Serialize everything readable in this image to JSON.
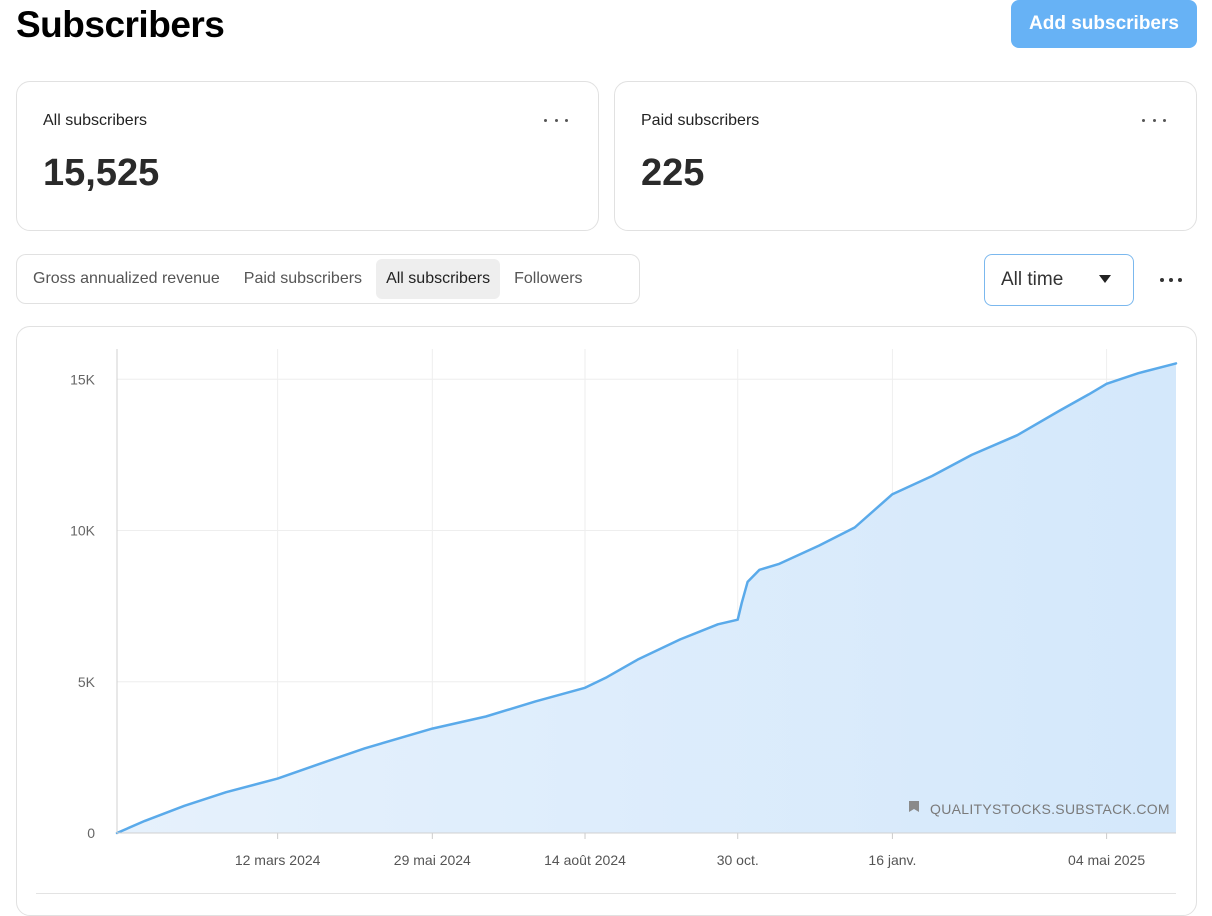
{
  "header": {
    "title": "Subscribers",
    "add_button_label": "Add subscribers"
  },
  "stats": {
    "all": {
      "label": "All subscribers",
      "value": "15,525"
    },
    "paid": {
      "label": "Paid subscribers",
      "value": "225"
    }
  },
  "tabs": [
    {
      "label": "Gross annualized revenue",
      "active": false
    },
    {
      "label": "Paid subscribers",
      "active": false
    },
    {
      "label": "All subscribers",
      "active": true
    },
    {
      "label": "Followers",
      "active": false
    }
  ],
  "range": {
    "selected": "All time"
  },
  "icons": {
    "card_more": "more-horizontal-icon",
    "caret": "caret-down-icon",
    "chart_more": "more-horizontal-icon",
    "watermark": "bookmark-icon"
  },
  "colors": {
    "accent": "#67b2f5",
    "line": "#5aaaea",
    "fill": "#d4e8fb"
  },
  "chart_data": {
    "type": "area",
    "watermark": "QUALITYSTOCKS.SUBSTACK.COM",
    "ylim": [
      0,
      16000
    ],
    "y_ticks": [
      {
        "value": 0,
        "label": "0"
      },
      {
        "value": 5000,
        "label": "5K"
      },
      {
        "value": 10000,
        "label": "10K"
      },
      {
        "value": 15000,
        "label": "15K"
      }
    ],
    "x_range": [
      "2023-12-22",
      "2025-06-08"
    ],
    "x_ticks": [
      {
        "date": "2024-03-12",
        "label": "12 mars 2024"
      },
      {
        "date": "2024-05-29",
        "label": "29 mai 2024"
      },
      {
        "date": "2024-08-14",
        "label": "14 août 2024"
      },
      {
        "date": "2024-10-30",
        "label": "30 oct."
      },
      {
        "date": "2025-01-16",
        "label": "16 janv."
      },
      {
        "date": "2025-05-04",
        "label": "04 mai 2025"
      }
    ],
    "grid": true,
    "series": [
      {
        "x": [
          "2023-12-22",
          "2024-01-05",
          "2024-01-25",
          "2024-02-15",
          "2024-03-12",
          "2024-04-05",
          "2024-04-25",
          "2024-05-29",
          "2024-06-25",
          "2024-07-20",
          "2024-08-14",
          "2024-08-25",
          "2024-09-10",
          "2024-10-01",
          "2024-10-20",
          "2024-10-30",
          "2024-11-01",
          "2024-11-04",
          "2024-11-10",
          "2024-11-20",
          "2024-12-10",
          "2024-12-28",
          "2025-01-16",
          "2025-02-05",
          "2025-02-25",
          "2025-03-20",
          "2025-04-10",
          "2025-04-25",
          "2025-05-04",
          "2025-05-20",
          "2025-06-08"
        ],
        "y": [
          0,
          400,
          900,
          1350,
          1800,
          2350,
          2800,
          3450,
          3850,
          4350,
          4800,
          5150,
          5750,
          6400,
          6900,
          7050,
          7600,
          8300,
          8700,
          8900,
          9500,
          10100,
          11200,
          11800,
          12500,
          13150,
          13950,
          14500,
          14850,
          15200,
          15525
        ]
      }
    ]
  }
}
